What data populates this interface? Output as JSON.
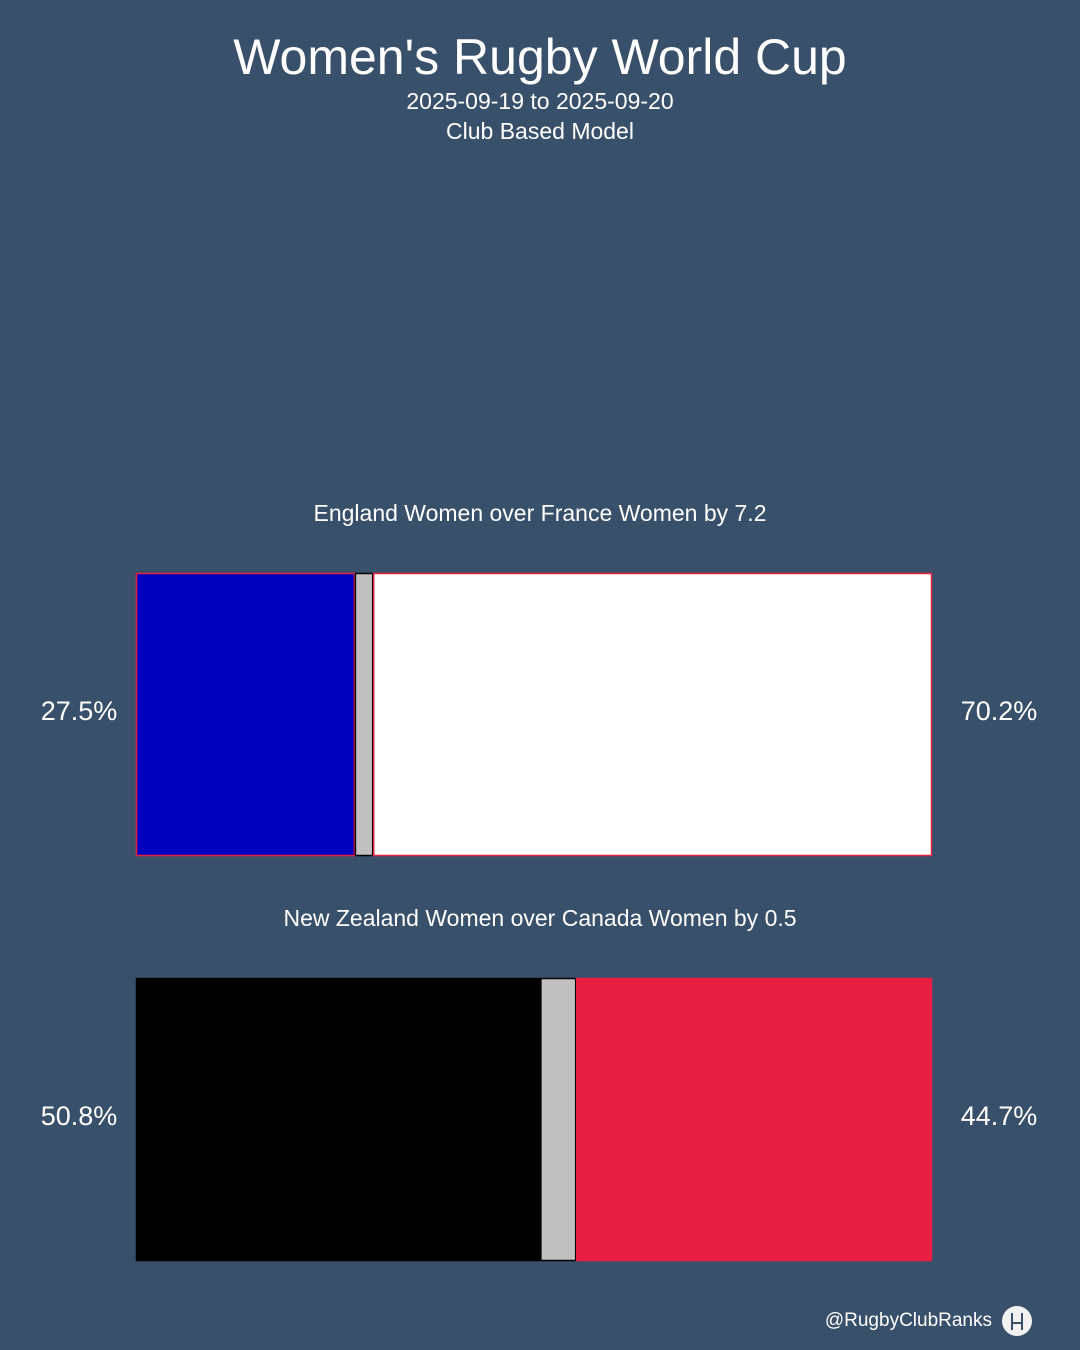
{
  "header": {
    "title": "Women's Rugby World Cup",
    "dates": "2025-09-19 to 2025-09-20",
    "model": "Club Based Model"
  },
  "chart_data": [
    {
      "type": "bar",
      "title": "England Women over France Women by 7.2",
      "series": [
        {
          "name": "France Women",
          "value": 27.5,
          "label": "27.5%",
          "color": "#0000c0",
          "border": "#e8203f"
        },
        {
          "name": "Draw",
          "value": 2.3,
          "label": "",
          "color": "#c0c0c0",
          "border": "#000000"
        },
        {
          "name": "England Women",
          "value": 70.2,
          "label": "70.2%",
          "color": "#ffffff",
          "border": "#e8203f"
        }
      ]
    },
    {
      "type": "bar",
      "title": "New Zealand Women over Canada Women by 0.5",
      "series": [
        {
          "name": "New Zealand Women",
          "value": 50.8,
          "label": "50.8%",
          "color": "#000000",
          "border": "#000000"
        },
        {
          "name": "Draw",
          "value": 4.5,
          "label": "",
          "color": "#c0c0c0",
          "border": "#000000"
        },
        {
          "name": "Canada Women",
          "value": 44.7,
          "label": "44.7%",
          "color": "#e81f42",
          "border": "#e81f42"
        }
      ]
    }
  ],
  "footer": {
    "handle": "@RugbyClubRanks",
    "logo": "rugby-posts-icon"
  }
}
